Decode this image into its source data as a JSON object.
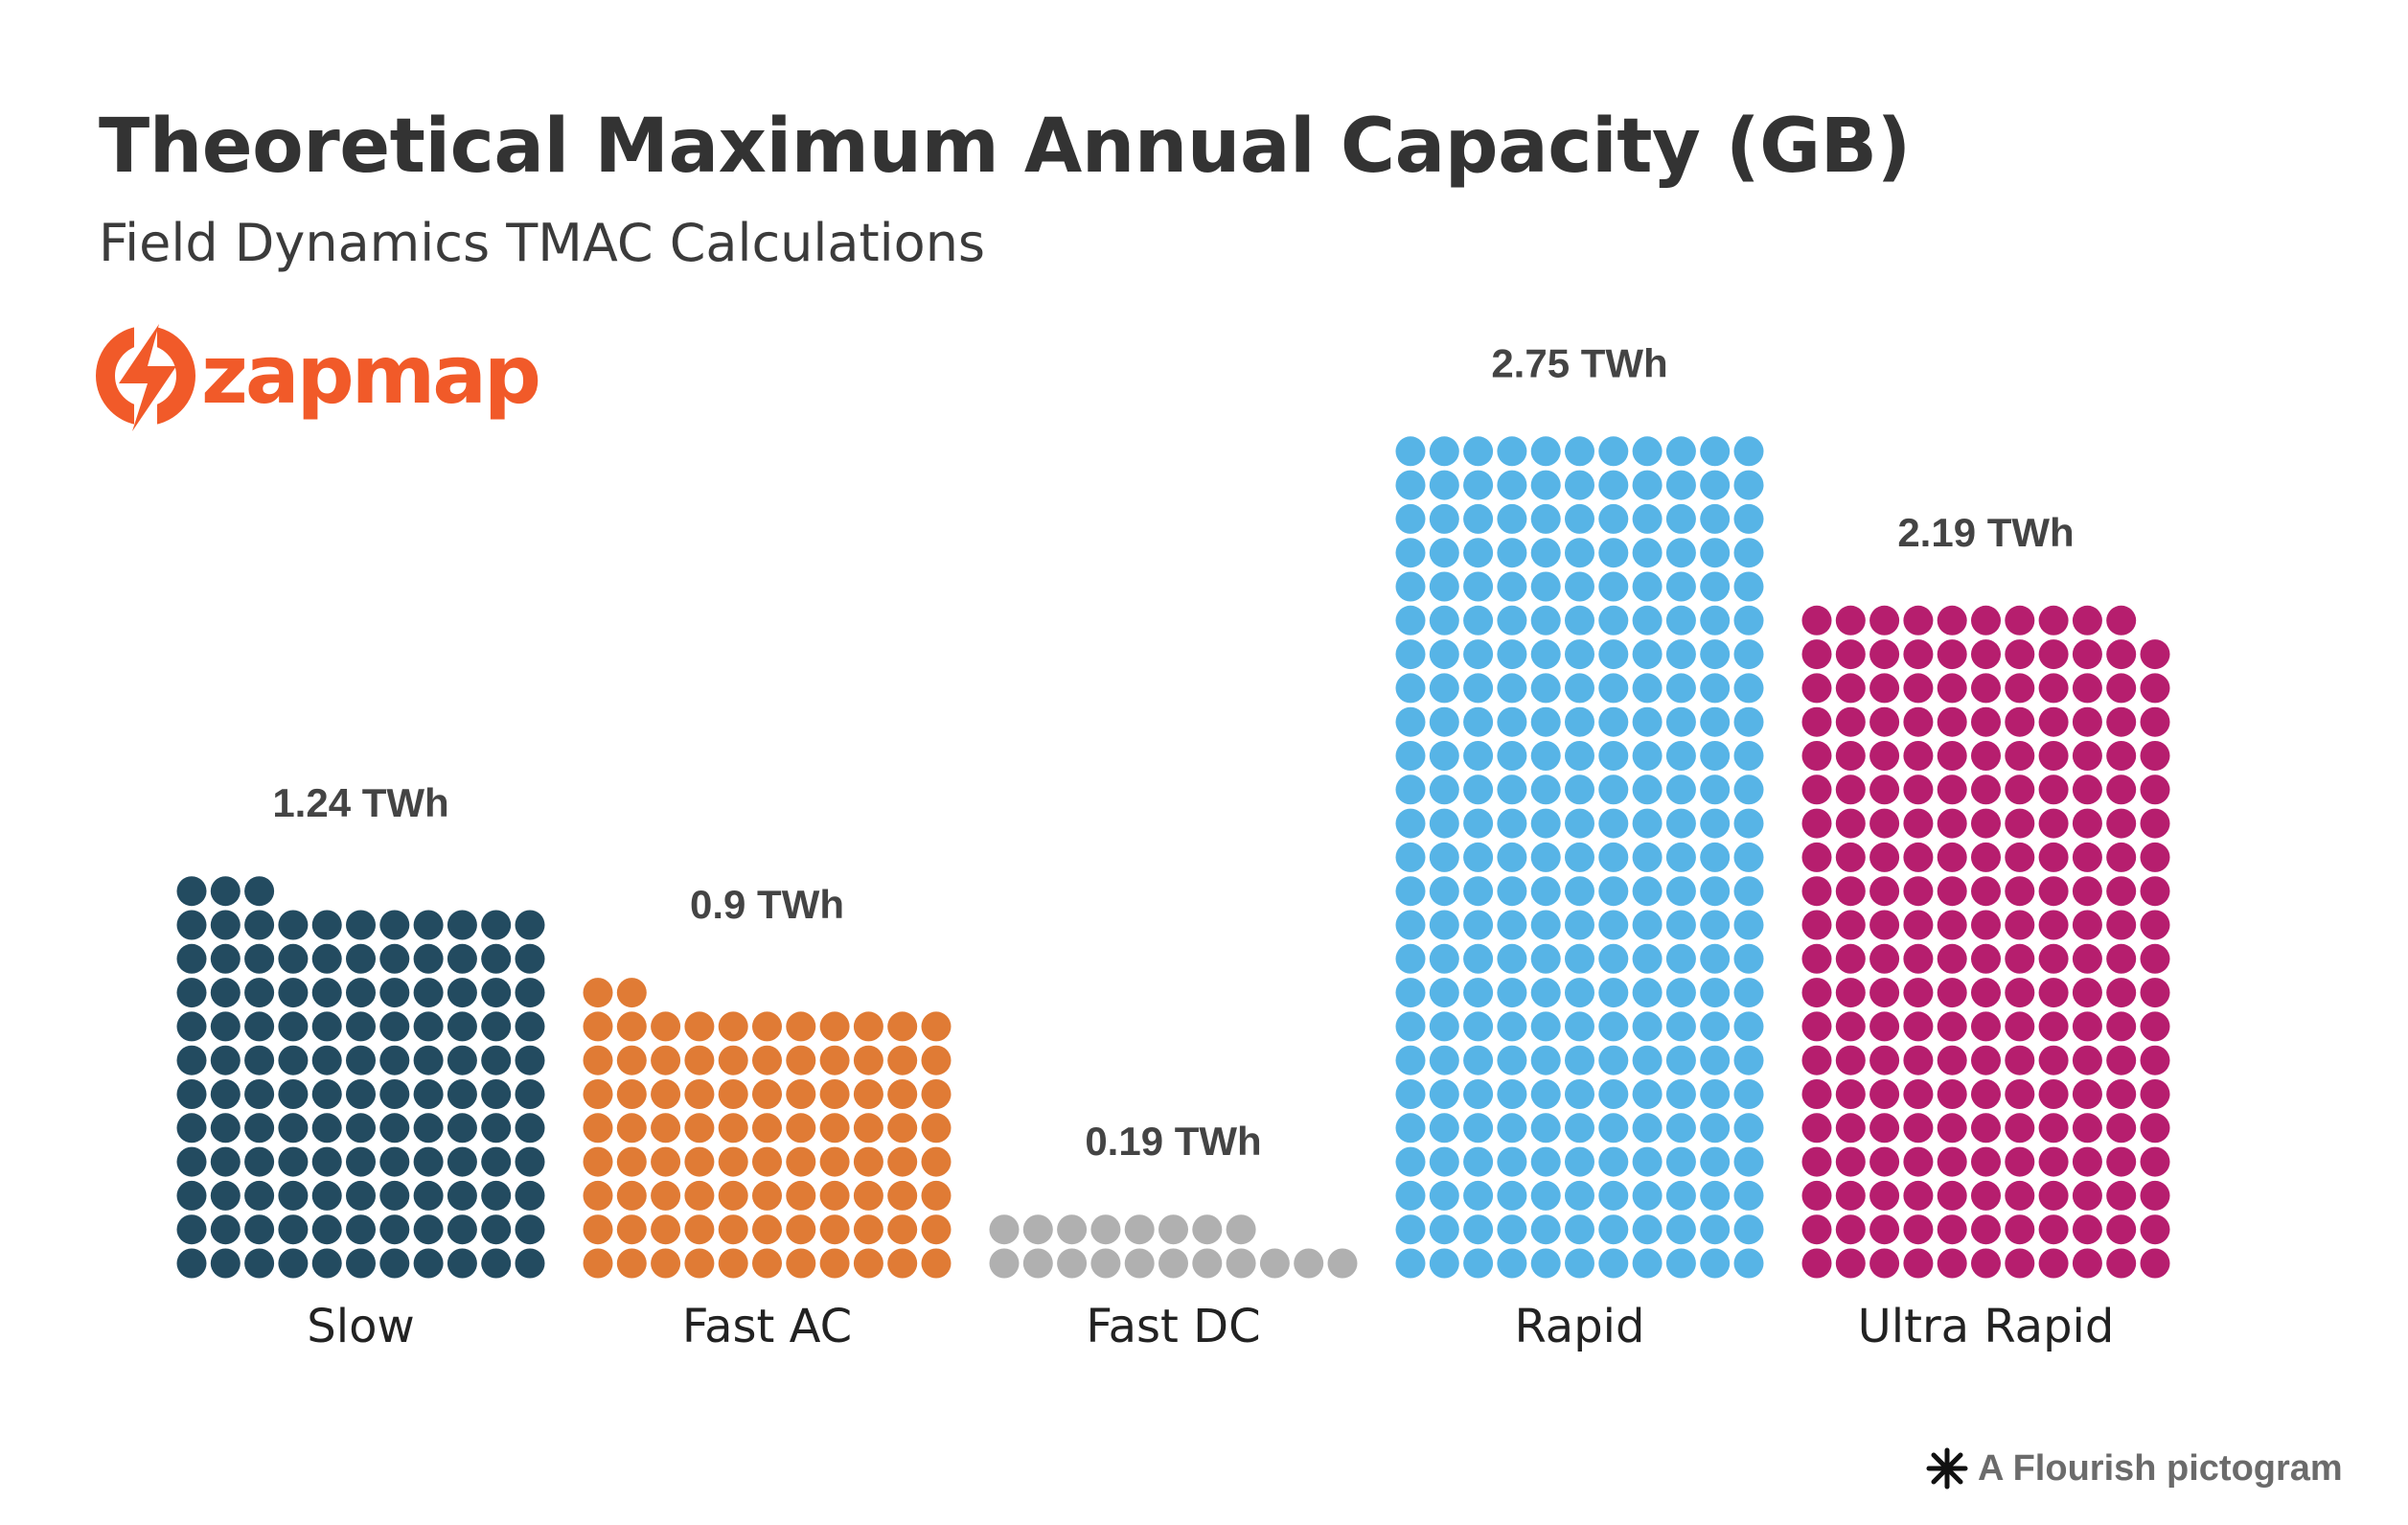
{
  "header": {
    "title": "Theoretical Maximum Annual Capacity (GB)",
    "subtitle": "Field Dynamics TMAC Calculations"
  },
  "logo": {
    "text": "zapmap",
    "color": "#f15a29",
    "icon": "lightning-bolt-icon"
  },
  "chart_data": {
    "type": "pictogram",
    "unit": "TWh",
    "dots_per_column_row": 11,
    "categories": [
      "Slow",
      "Fast AC",
      "Fast DC",
      "Rapid",
      "Ultra Rapid"
    ],
    "values": [
      1.24,
      0.9,
      0.19,
      2.75,
      2.19
    ],
    "value_labels": [
      "1.24 TWh",
      "0.9 TWh",
      "0.19 TWh",
      "2.75 TWh",
      "2.19 TWh"
    ],
    "colors": [
      "#234b60",
      "#e07b35",
      "#b0b0b0",
      "#57b4e6",
      "#b61e6e"
    ],
    "dot_counts": [
      124,
      90,
      19,
      275,
      219
    ]
  },
  "footer": {
    "text": "A Flourish pictogram",
    "icon": "flourish-asterisk-icon"
  }
}
